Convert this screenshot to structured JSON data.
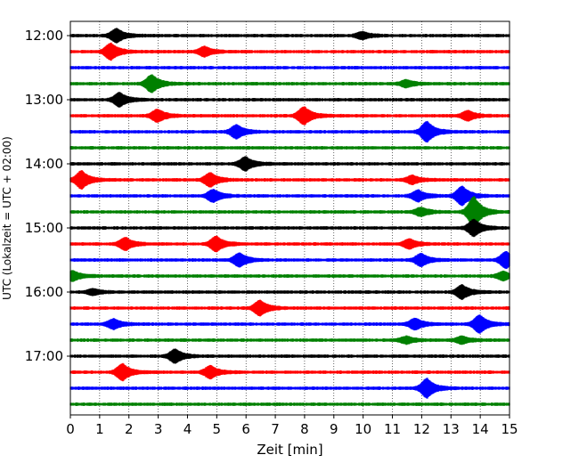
{
  "chart_data": {
    "type": "line",
    "title": "",
    "xlabel": "Zeit  [min]",
    "ylabel": "UTC (Lokalzeit = UTC + 02:00)",
    "xlim": [
      0,
      15
    ],
    "x_ticks": [
      "0",
      "1",
      "2",
      "3",
      "4",
      "5",
      "6",
      "7",
      "8",
      "9",
      "10",
      "11",
      "12",
      "13",
      "14",
      "15"
    ],
    "y_ticks": [
      "12:00",
      "13:00",
      "14:00",
      "15:00",
      "16:00",
      "17:00"
    ],
    "vertical_grid": "dotted",
    "trace_minutes_per_line": 15,
    "colors_cycle": [
      "#000000",
      "#ff0000",
      "#0000ff",
      "#008000"
    ],
    "series": [
      {
        "start": "12:00",
        "color": "#000000",
        "events": [
          {
            "x": 1.6,
            "amp": 1.0
          },
          {
            "x": 10.0,
            "amp": 0.5
          }
        ]
      },
      {
        "start": "12:15",
        "color": "#ff0000",
        "events": [
          {
            "x": 1.4,
            "amp": 1.2
          },
          {
            "x": 4.6,
            "amp": 0.7
          }
        ]
      },
      {
        "start": "12:30",
        "color": "#0000ff",
        "events": []
      },
      {
        "start": "12:45",
        "color": "#008000",
        "events": [
          {
            "x": 2.8,
            "amp": 1.3
          },
          {
            "x": 11.5,
            "amp": 0.5
          }
        ]
      },
      {
        "start": "13:00",
        "color": "#000000",
        "events": [
          {
            "x": 1.7,
            "amp": 1.0
          }
        ]
      },
      {
        "start": "13:15",
        "color": "#ff0000",
        "events": [
          {
            "x": 3.0,
            "amp": 0.9
          },
          {
            "x": 8.0,
            "amp": 1.3
          },
          {
            "x": 13.6,
            "amp": 0.7
          }
        ]
      },
      {
        "start": "13:30",
        "color": "#0000ff",
        "events": [
          {
            "x": 5.7,
            "amp": 1.0
          },
          {
            "x": 12.2,
            "amp": 1.5
          }
        ]
      },
      {
        "start": "13:45",
        "color": "#008000",
        "events": []
      },
      {
        "start": "14:00",
        "color": "#000000",
        "events": [
          {
            "x": 6.0,
            "amp": 1.0
          }
        ]
      },
      {
        "start": "14:15",
        "color": "#ff0000",
        "events": [
          {
            "x": 0.4,
            "amp": 1.3
          },
          {
            "x": 4.8,
            "amp": 1.0
          },
          {
            "x": 11.7,
            "amp": 0.6
          }
        ]
      },
      {
        "start": "14:30",
        "color": "#0000ff",
        "events": [
          {
            "x": 4.9,
            "amp": 0.9
          },
          {
            "x": 11.9,
            "amp": 0.8
          },
          {
            "x": 13.4,
            "amp": 1.4
          }
        ]
      },
      {
        "start": "14:45",
        "color": "#008000",
        "events": [
          {
            "x": 12.0,
            "amp": 0.6
          },
          {
            "x": 13.8,
            "amp": 2.3
          }
        ]
      },
      {
        "start": "15:00",
        "color": "#000000",
        "events": [
          {
            "x": 13.8,
            "amp": 1.2
          }
        ]
      },
      {
        "start": "15:15",
        "color": "#ff0000",
        "events": [
          {
            "x": 1.9,
            "amp": 0.9
          },
          {
            "x": 5.0,
            "amp": 1.1
          },
          {
            "x": 11.6,
            "amp": 0.7
          }
        ]
      },
      {
        "start": "15:30",
        "color": "#0000ff",
        "events": [
          {
            "x": 5.8,
            "amp": 1.0
          },
          {
            "x": 12.0,
            "amp": 0.9
          },
          {
            "x": 14.9,
            "amp": 1.2
          }
        ]
      },
      {
        "start": "15:45",
        "color": "#008000",
        "events": [
          {
            "x": 0.1,
            "amp": 0.7
          },
          {
            "x": 14.8,
            "amp": 0.6
          }
        ]
      },
      {
        "start": "16:00",
        "color": "#000000",
        "events": [
          {
            "x": 0.8,
            "amp": 0.4
          },
          {
            "x": 13.4,
            "amp": 1.0
          }
        ]
      },
      {
        "start": "16:15",
        "color": "#ff0000",
        "events": [
          {
            "x": 6.5,
            "amp": 1.1
          }
        ]
      },
      {
        "start": "16:30",
        "color": "#0000ff",
        "events": [
          {
            "x": 1.5,
            "amp": 0.7
          },
          {
            "x": 11.8,
            "amp": 0.8
          },
          {
            "x": 14.0,
            "amp": 1.3
          }
        ]
      },
      {
        "start": "16:45",
        "color": "#008000",
        "events": [
          {
            "x": 11.5,
            "amp": 0.5
          },
          {
            "x": 13.4,
            "amp": 0.5
          }
        ]
      },
      {
        "start": "17:00",
        "color": "#000000",
        "events": [
          {
            "x": 3.6,
            "amp": 1.0
          }
        ]
      },
      {
        "start": "17:15",
        "color": "#ff0000",
        "events": [
          {
            "x": 1.8,
            "amp": 1.2
          },
          {
            "x": 4.8,
            "amp": 0.9
          }
        ]
      },
      {
        "start": "17:30",
        "color": "#0000ff",
        "events": [
          {
            "x": 12.2,
            "amp": 1.4
          }
        ]
      },
      {
        "start": "17:45",
        "color": "#008000",
        "events": []
      }
    ]
  }
}
